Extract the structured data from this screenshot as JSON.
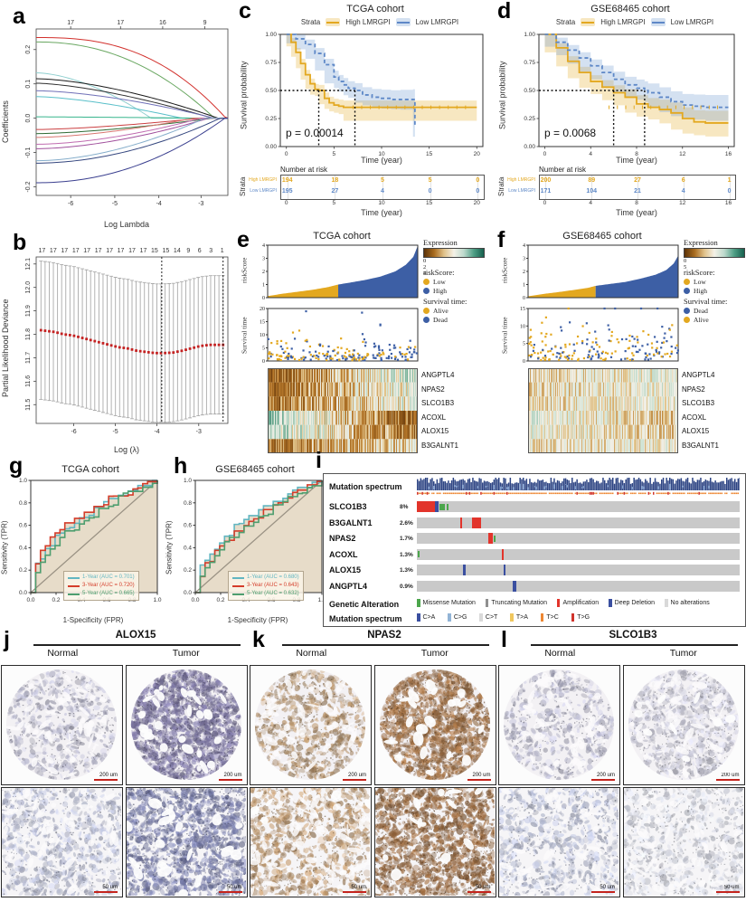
{
  "colors": {
    "km_high": "#E3A820",
    "km_low": "#5E88C7",
    "km_high_fill": "rgba(227,168,32,0.28)",
    "km_low_fill": "rgba(111,154,210,0.30)",
    "risk_low": "#E3A820",
    "risk_high": "#3D5FA5",
    "roc_fill": "#E7DCC9",
    "diag": "#9A9284",
    "track_gray": "#C9C9C9",
    "amp": "#E2342B",
    "del": "#3A4FA0",
    "mis": "#4CA64C",
    "trunc": "#8F8F8F",
    "noalt": "#D9D9D9",
    "scalebar_red": "#C4241D"
  },
  "panel_a": {
    "letter": "a",
    "ylabel": "Coefficients",
    "xlabel": "Log Lambda",
    "ylim": [
      -0.225,
      0.26
    ],
    "top_ticks": [
      {
        "f": 0.18,
        "label": "17"
      },
      {
        "f": 0.44,
        "label": "17"
      },
      {
        "f": 0.66,
        "label": "16"
      },
      {
        "f": 0.88,
        "label": "9"
      }
    ],
    "x_ticks": [
      {
        "f": 0.18,
        "label": "-6"
      },
      {
        "f": 0.41,
        "label": "-5"
      },
      {
        "f": 0.64,
        "label": "-4"
      },
      {
        "f": 0.86,
        "label": "-3"
      }
    ],
    "y_ticks": [
      {
        "v": -0.2,
        "label": "-0.2"
      },
      {
        "v": -0.1,
        "label": "-0.1"
      },
      {
        "v": 0,
        "label": "0.0"
      },
      {
        "v": 0.1,
        "label": "0.1"
      },
      {
        "v": 0.2,
        "label": "0.2"
      }
    ],
    "lines": [
      {
        "color": "#D2302C",
        "y0": 0.235,
        "xe": 0.99,
        "k": 2.6
      },
      {
        "color": "#69A761",
        "y0": 0.222,
        "xe": 0.93,
        "k": 2.2
      },
      {
        "color": "#8FCFCF",
        "y0": 0.132,
        "xe": 0.6,
        "k": 1.7
      },
      {
        "color": "#1A1A1A",
        "y0": 0.115,
        "xe": 0.95,
        "k": 1.6
      },
      {
        "color": "#2F2F2F",
        "y0": 0.102,
        "xe": 0.92,
        "k": 1.5
      },
      {
        "color": "#7070B8",
        "y0": 0.08,
        "xe": 0.93,
        "k": 1.6
      },
      {
        "color": "#59BFC9",
        "y0": 0.063,
        "xe": 0.76,
        "k": 1.5
      },
      {
        "color": "#37B58C",
        "y0": 0.004,
        "xe": 0.9,
        "k": 1.2
      },
      {
        "color": "#CB4042",
        "y0": -0.033,
        "xe": 0.86,
        "k": 1.5
      },
      {
        "color": "#2E6B34",
        "y0": -0.045,
        "xe": 0.92,
        "k": 1.5
      },
      {
        "color": "#D8766F",
        "y0": -0.056,
        "xe": 0.82,
        "k": 1.6
      },
      {
        "color": "#C06CB0",
        "y0": -0.076,
        "xe": 0.86,
        "k": 1.7
      },
      {
        "color": "#A04F9C",
        "y0": -0.089,
        "xe": 0.9,
        "k": 1.7
      },
      {
        "color": "#86AECB",
        "y0": -0.124,
        "xe": 0.88,
        "k": 1.8
      },
      {
        "color": "#35477F",
        "y0": -0.131,
        "xe": 0.96,
        "k": 1.9
      },
      {
        "color": "#3A3F8F",
        "y0": -0.188,
        "xe": 0.985,
        "k": 2.1
      }
    ]
  },
  "panel_b": {
    "letter": "b",
    "ylabel": "Partial Likelihood Deviance",
    "xlabel": "Log (λ)",
    "ylim": [
      11.42,
      12.13
    ],
    "top_ticks": [
      "17",
      "17",
      "17",
      "17",
      "17",
      "17",
      "17",
      "17",
      "17",
      "17",
      "15",
      "15",
      "14",
      "9",
      "6",
      "3",
      "1"
    ],
    "x_ticks": [
      {
        "f": 0.196,
        "label": "-6"
      },
      {
        "f": 0.413,
        "label": "-5"
      },
      {
        "f": 0.63,
        "label": "-4"
      },
      {
        "f": 0.848,
        "label": "-3"
      }
    ],
    "y_ticks": [
      {
        "v": 11.5,
        "label": "11.5"
      },
      {
        "v": 11.6,
        "label": "11.6"
      },
      {
        "v": 11.7,
        "label": "11.7"
      },
      {
        "v": 11.8,
        "label": "11.8"
      },
      {
        "v": 11.9,
        "label": "11.9"
      },
      {
        "v": 12.0,
        "label": "12.0"
      },
      {
        "v": 12.1,
        "label": "12.1"
      }
    ],
    "mean": [
      11.82,
      11.815,
      11.81,
      11.8,
      11.795,
      11.785,
      11.775,
      11.765,
      11.755,
      11.745,
      11.74,
      11.73,
      11.725,
      11.72,
      11.72,
      11.722,
      11.73,
      11.74,
      11.75,
      11.755,
      11.755
    ],
    "err": 0.295,
    "n_points": 45,
    "vlines": [
      0.655,
      0.975
    ]
  },
  "panel_c": {
    "letter": "c",
    "title": "TCGA cohort",
    "ylabel": "Survival probability",
    "xlabel": "Time (year)",
    "pvalue": "p = 0.00014",
    "legend": {
      "strata": "Strata",
      "high": "High LMRGPI",
      "low": "Low LMRGPI"
    },
    "y_ticks": [
      "1.00",
      "0.75",
      "0.50",
      "0.25",
      "0.00"
    ],
    "x_ticks": [
      0,
      5,
      10,
      15,
      20
    ],
    "tmax": 20,
    "high": {
      "t": [
        0,
        0.5,
        1,
        1.5,
        2,
        2.5,
        3,
        3.4,
        4,
        4.5,
        5,
        5.5,
        6,
        20
      ],
      "s": [
        1,
        0.93,
        0.84,
        0.74,
        0.64,
        0.56,
        0.51,
        0.5,
        0.43,
        0.39,
        0.37,
        0.36,
        0.35,
        0.35
      ]
    },
    "low": {
      "t": [
        0,
        1,
        2,
        3,
        4,
        5,
        5.5,
        6,
        6.5,
        7.2,
        8,
        9,
        10,
        11,
        12,
        13.3,
        13.5
      ],
      "s": [
        1,
        0.96,
        0.91,
        0.83,
        0.73,
        0.62,
        0.58,
        0.55,
        0.52,
        0.5,
        0.46,
        0.44,
        0.43,
        0.42,
        0.42,
        0.42,
        0.18
      ]
    },
    "medians": [
      3.4,
      7.2
    ],
    "risk": {
      "title": "Number at risk",
      "strata": "Strata",
      "xlabel": "Time (year)",
      "rows": [
        {
          "name": "High LMRGPI",
          "values": [
            "194",
            "18",
            "5",
            "5",
            "0"
          ]
        },
        {
          "name": "Low LMRGPI",
          "values": [
            "195",
            "27",
            "4",
            "0",
            "0"
          ]
        }
      ]
    }
  },
  "panel_d": {
    "letter": "d",
    "title": "GSE68465 cohort",
    "ylabel": "Survival probability",
    "xlabel": "Time (year)",
    "pvalue": "p = 0.0068",
    "legend": {
      "strata": "Strata",
      "high": "High LMRGPI",
      "low": "Low LMRGPI"
    },
    "y_ticks": [
      "1.00",
      "0.75",
      "0.50",
      "0.25",
      "0.00"
    ],
    "x_ticks": [
      0,
      4,
      8,
      12,
      16
    ],
    "tmax": 16,
    "high": {
      "t": [
        0,
        1,
        2,
        3,
        4,
        5,
        6,
        7,
        8,
        9,
        10,
        11,
        12,
        13,
        14,
        16
      ],
      "s": [
        1,
        0.88,
        0.76,
        0.66,
        0.58,
        0.53,
        0.48,
        0.44,
        0.38,
        0.35,
        0.33,
        0.3,
        0.25,
        0.22,
        0.21,
        0.21
      ]
    },
    "low": {
      "t": [
        0,
        1,
        2,
        3,
        4,
        5,
        6,
        7,
        8,
        8.7,
        9,
        10,
        11,
        12,
        13,
        14,
        16
      ],
      "s": [
        1,
        0.93,
        0.86,
        0.79,
        0.72,
        0.66,
        0.6,
        0.55,
        0.52,
        0.5,
        0.48,
        0.44,
        0.4,
        0.37,
        0.36,
        0.35,
        0.35
      ]
    },
    "medians": [
      6.0,
      8.7
    ],
    "risk": {
      "title": "Number at risk",
      "strata": "Strata",
      "xlabel": "Time (year)",
      "rows": [
        {
          "name": "High LMRGPI",
          "values": [
            "200",
            "89",
            "27",
            "6",
            "1"
          ]
        },
        {
          "name": "Low LMRGPI",
          "values": [
            "171",
            "104",
            "21",
            "4",
            "0"
          ]
        }
      ]
    }
  },
  "panel_e": {
    "letter": "e",
    "title": "TCGA cohort",
    "risk_curve": {
      "ylabel": "riskScore",
      "y_ticks": [
        0,
        1,
        2,
        3,
        4
      ],
      "ymax": 4,
      "split": 0.47,
      "x": [
        0,
        0.1,
        0.2,
        0.3,
        0.4,
        0.47,
        0.55,
        0.65,
        0.75,
        0.85,
        0.92,
        0.97,
        1
      ],
      "y": [
        0.12,
        0.3,
        0.45,
        0.6,
        0.8,
        1.0,
        1.15,
        1.35,
        1.6,
        2.0,
        2.5,
        3.1,
        3.95
      ]
    },
    "scatter": {
      "ylabel": "Survival time",
      "y_ticks": [
        0,
        5,
        10,
        15,
        20
      ],
      "ymax": 20,
      "n": 210,
      "seed": 11,
      "lam": 2.6
    },
    "genes": [
      "ANGPTL4",
      "NPAS2",
      "SLCO1B3",
      "ACOXL",
      "ALOX15",
      "B3GALNT1"
    ],
    "heat": {
      "seed": 5,
      "cols": 166,
      "sat": 1,
      "noise": 0.38,
      "rows": [
        [
          -0.7,
          0.35
        ],
        [
          -0.6,
          0.2
        ],
        [
          -0.55,
          0.1
        ],
        [
          0.45,
          -0.7
        ],
        [
          0.35,
          -0.6
        ],
        [
          -0.45,
          -0.05
        ]
      ]
    },
    "legend": {
      "expression": "Expression",
      "ticks": [
        {
          "f": 0.4,
          "label": "0"
        },
        {
          "f": 0.62,
          "label": "2"
        },
        {
          "f": 0.84,
          "label": "4"
        }
      ],
      "risk_label": "riskScore:",
      "risk_items": [
        {
          "label": "Low",
          "color": "#E3A820"
        },
        {
          "label": "High",
          "color": "#3D5FA5"
        }
      ],
      "surv_label": "Survival time:",
      "surv_items": [
        {
          "label": "Alive",
          "color": "#E3A820"
        },
        {
          "label": "Dead",
          "color": "#3D5FA5"
        }
      ]
    }
  },
  "panel_f": {
    "letter": "f",
    "title": "GSE68465 cohort",
    "risk_curve": {
      "ylabel": "riskScore",
      "y_ticks": [
        0,
        1,
        2,
        3,
        4
      ],
      "ymax": 4,
      "split": 0.45,
      "x": [
        0,
        0.1,
        0.2,
        0.3,
        0.4,
        0.45,
        0.55,
        0.65,
        0.75,
        0.85,
        0.92,
        0.97,
        1
      ],
      "y": [
        0.1,
        0.28,
        0.42,
        0.58,
        0.75,
        0.9,
        1.05,
        1.2,
        1.45,
        1.75,
        2.1,
        2.6,
        3.2
      ]
    },
    "scatter": {
      "ylabel": "Survival time",
      "y_ticks": [
        0,
        5,
        10,
        15
      ],
      "ymax": 15,
      "n": 200,
      "seed": 23,
      "lam": 4.0
    },
    "genes": [
      "ANGPTL4",
      "NPAS2",
      "SLCO1B3",
      "ACOXL",
      "ALOX15",
      "B3GALNT1"
    ],
    "heat": {
      "seed": 9,
      "cols": 166,
      "sat": 0.55,
      "noise": 0.5,
      "rows": [
        [
          -0.25,
          0.2
        ],
        [
          -0.2,
          0.15
        ],
        [
          -0.2,
          0.1
        ],
        [
          0.25,
          -0.35
        ],
        [
          0.2,
          -0.3
        ],
        [
          -0.15,
          0.05
        ]
      ]
    },
    "legend": {
      "expression": "Expression",
      "ticks": [
        {
          "f": 0.52,
          "label": "0"
        },
        {
          "f": 0.86,
          "label": "5"
        }
      ],
      "risk_label": "riskScore:",
      "risk_items": [
        {
          "label": "Low",
          "color": "#E3A820"
        },
        {
          "label": "High",
          "color": "#3D5FA5"
        }
      ],
      "surv_label": "Survival time:",
      "surv_items": [
        {
          "label": "Dead",
          "color": "#3D5FA5"
        },
        {
          "label": "Alive",
          "color": "#E3A820"
        }
      ]
    }
  },
  "panel_g": {
    "letter": "g",
    "title": "TCGA cohort",
    "ylabel": "Sensitivity (TPR)",
    "xlabel": "1-Specificity (FPR)",
    "ticks": [
      "0.0",
      "0.2",
      "0.4",
      "0.6",
      "0.8",
      "1.0"
    ],
    "curves": [
      {
        "label": "1-Year (AUC = 0.701)",
        "color": "#62B6C1",
        "p": 0.43,
        "seed": 3
      },
      {
        "label": "3-Year (AUC = 0.720)",
        "color": "#D43D2A",
        "p": 0.39,
        "seed": 8
      },
      {
        "label": "5-Year (AUC = 0.665)",
        "color": "#4E9E6F",
        "p": 0.5,
        "seed": 15
      }
    ]
  },
  "panel_h": {
    "letter": "h",
    "title": "GSE68465 cohort",
    "ylabel": "Sensitivity (TPR)",
    "xlabel": "1-Specificity (FPR)",
    "ticks": [
      "0.0",
      "0.2",
      "0.4",
      "0.6",
      "0.8",
      "1.0"
    ],
    "curves": [
      {
        "label": "1-Year (AUC = 0.680)",
        "color": "#62B6C1",
        "p": 0.47,
        "seed": 4
      },
      {
        "label": "3-Year (AUC = 0.643)",
        "color": "#D43D2A",
        "p": 0.555,
        "seed": 9
      },
      {
        "label": "5-Year (AUC = 0.632)",
        "color": "#4E9E6F",
        "p": 0.582,
        "seed": 21
      }
    ]
  },
  "panel_i": {
    "letter": "i",
    "spectrum_label": "Mutation spectrum",
    "spectrum_seed": 31,
    "rows": [
      {
        "gene": "SLCO1B3",
        "pct": "8%",
        "marks": [
          {
            "t": "amp",
            "x": 0.0,
            "w": 0.055
          },
          {
            "t": "del",
            "x": 0.056,
            "w": 0.012
          },
          {
            "t": "mis",
            "x": 0.07,
            "w": 0.018
          },
          {
            "t": "mis",
            "x": 0.092,
            "w": 0.006
          }
        ]
      },
      {
        "gene": "B3GALNT1",
        "pct": "2.6%",
        "marks": [
          {
            "t": "amp",
            "x": 0.135,
            "w": 0.005
          },
          {
            "t": "amp",
            "x": 0.172,
            "w": 0.028
          }
        ]
      },
      {
        "gene": "NPAS2",
        "pct": "1.7%",
        "marks": [
          {
            "t": "amp",
            "x": 0.222,
            "w": 0.012
          },
          {
            "t": "mis",
            "x": 0.237,
            "w": 0.005
          }
        ]
      },
      {
        "gene": "ACOXL",
        "pct": "1.3%",
        "marks": [
          {
            "t": "mis",
            "x": 0.002,
            "w": 0.006
          },
          {
            "t": "amp",
            "x": 0.262,
            "w": 0.006
          }
        ]
      },
      {
        "gene": "ALOX15",
        "pct": "1.3%",
        "marks": [
          {
            "t": "del",
            "x": 0.143,
            "w": 0.007
          },
          {
            "t": "del",
            "x": 0.268,
            "w": 0.007
          }
        ]
      },
      {
        "gene": "ANGPTL4",
        "pct": "0.9%",
        "marks": [
          {
            "t": "del",
            "x": 0.298,
            "w": 0.01
          }
        ]
      }
    ],
    "alteration_legend": {
      "label": "Genetic Alteration",
      "items": [
        {
          "name": "Missense Mutation",
          "color": "#4CA64C"
        },
        {
          "name": "Truncating Mutation",
          "color": "#8F8F8F"
        },
        {
          "name": "Amplification",
          "color": "#E2342B"
        },
        {
          "name": "Deep Deletion",
          "color": "#3A4FA0"
        },
        {
          "name": "No alterations",
          "color": "#D9D9D9"
        }
      ]
    },
    "spectrum_legend": {
      "label": "Mutation spectrum",
      "items": [
        {
          "name": "C>A",
          "color": "#3A4FA0"
        },
        {
          "name": "C>G",
          "color": "#92B4D6"
        },
        {
          "name": "C>T",
          "color": "#D9D9D9"
        },
        {
          "name": "T>A",
          "color": "#F0C75E"
        },
        {
          "name": "T>C",
          "color": "#ED8733"
        },
        {
          "name": "T>G",
          "color": "#D0342C"
        }
      ]
    }
  },
  "panel_jkl": {
    "groups": [
      {
        "letter": "j",
        "gene": "ALOX15"
      },
      {
        "letter": "k",
        "gene": "NPAS2"
      },
      {
        "letter": "l",
        "gene": "SLCO1B3"
      }
    ],
    "col_labels": [
      "Normal",
      "Tumor"
    ],
    "scale_top": "200 um",
    "scale_bottom": "50 um",
    "tiles": [
      {
        "name": "alox15-normal-200um",
        "shape": "circle",
        "base": "#aaaabf",
        "density": 0.33,
        "holes": 0,
        "seed": 41,
        "scale": "200 um"
      },
      {
        "name": "alox15-tumor-200um",
        "shape": "circle",
        "base": "#77719b",
        "density": 0.95,
        "holes": 26,
        "seed": 42,
        "scale": "200 um"
      },
      {
        "name": "npas2-normal-200um",
        "shape": "circle",
        "base": "#ab8a64",
        "density": 0.45,
        "holes": 0,
        "seed": 43,
        "scale": "200 um"
      },
      {
        "name": "npas2-tumor-200um",
        "shape": "circle",
        "base": "#9a6b40",
        "density": 0.9,
        "holes": 22,
        "seed": 44,
        "scale": "200 um"
      },
      {
        "name": "slco1b3-normal-200um",
        "shape": "circle",
        "base": "#aeaec4",
        "density": 0.33,
        "holes": 0,
        "seed": 45,
        "scale": "200 um"
      },
      {
        "name": "slco1b3-tumor-200um",
        "shape": "circle",
        "base": "#c3c3d2",
        "density": 0.55,
        "holes": 8,
        "seed": 46,
        "scale": "200 um"
      },
      {
        "name": "alox15-normal-50um",
        "shape": "full",
        "base": "#a9aec6",
        "density": 0.5,
        "holes": 0,
        "seed": 47,
        "scale": "50 um"
      },
      {
        "name": "alox15-tumor-50um",
        "shape": "full",
        "base": "#6f74a0",
        "density": 0.85,
        "holes": 20,
        "seed": 48,
        "scale": "50 um"
      },
      {
        "name": "npas2-normal-50um",
        "shape": "full",
        "base": "#b08a60",
        "density": 0.55,
        "holes": 6,
        "seed": 49,
        "scale": "50 um"
      },
      {
        "name": "npas2-tumor-50um",
        "shape": "full",
        "base": "#8d5f36",
        "density": 0.9,
        "holes": 14,
        "seed": 50,
        "scale": "50 um"
      },
      {
        "name": "slco1b3-normal-50um",
        "shape": "full",
        "base": "#aab0c8",
        "density": 0.45,
        "holes": 0,
        "seed": 51,
        "scale": "50 um"
      },
      {
        "name": "slco1b3-tumor-50um",
        "shape": "full",
        "base": "#c9ccd8",
        "density": 0.5,
        "holes": 0,
        "seed": 52,
        "scale": "50 um"
      }
    ]
  }
}
